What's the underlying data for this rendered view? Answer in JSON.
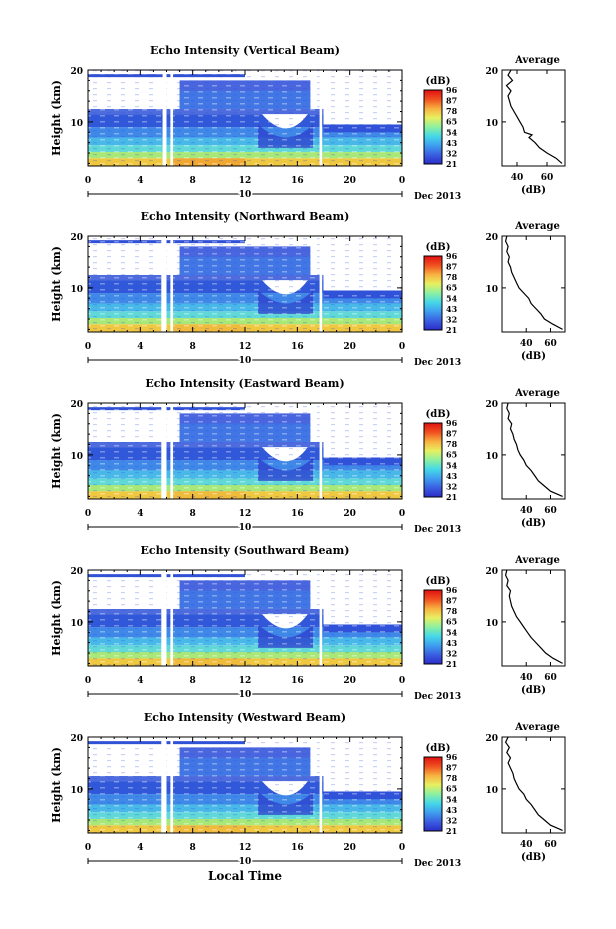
{
  "figure": {
    "date_label": "Dec 2013",
    "day_label": "10",
    "time_axis_label": "Local Time",
    "colorbar_unit": "(dB)",
    "colorbar_ticks": [
      "96",
      "87",
      "78",
      "65",
      "54",
      "43",
      "32",
      "21"
    ],
    "colorbar_colors": [
      "#2b2cc8",
      "#3a5fe0",
      "#3f9ef0",
      "#45d8e8",
      "#8ef0a0",
      "#e8f060",
      "#f8b040",
      "#f05020",
      "#e01010"
    ],
    "average_title": "Average",
    "average_xlabel": "(dB)"
  },
  "chart_data": [
    {
      "type": "heatmap",
      "title": "Echo Intensity (Vertical Beam)",
      "ylabel": "Height (km)",
      "x_ticks": [
        "0",
        "4",
        "8",
        "12",
        "16",
        "20",
        "0"
      ],
      "y_ticks": [
        "20",
        "10"
      ],
      "xlim": [
        0,
        24
      ],
      "ylim": [
        1.5,
        20
      ],
      "data_gaps_hours": [
        [
          5.7,
          6.0
        ],
        [
          6.3,
          6.5
        ],
        [
          17.7,
          17.9
        ]
      ],
      "profile": {
        "xlim": [
          30,
          72
        ],
        "x_ticks": [
          "40",
          "60"
        ],
        "y_ticks": [
          "20",
          "10"
        ],
        "points": [
          [
            70,
            2
          ],
          [
            66,
            3
          ],
          [
            60,
            4
          ],
          [
            55,
            5
          ],
          [
            52,
            6
          ],
          [
            48,
            7
          ],
          [
            50,
            7.5
          ],
          [
            45,
            8
          ],
          [
            44,
            9
          ],
          [
            42,
            10
          ],
          [
            40,
            11
          ],
          [
            38,
            12
          ],
          [
            36,
            13
          ],
          [
            35,
            14
          ],
          [
            34,
            15
          ],
          [
            36,
            16
          ],
          [
            33,
            17
          ],
          [
            37,
            18
          ],
          [
            34,
            19
          ],
          [
            36,
            20
          ]
        ]
      }
    },
    {
      "type": "heatmap",
      "title": "Echo Intensity (Northward Beam)",
      "ylabel": "Height (km)",
      "x_ticks": [
        "0",
        "4",
        "8",
        "12",
        "16",
        "20",
        "0"
      ],
      "y_ticks": [
        "20",
        "10"
      ],
      "xlim": [
        0,
        24
      ],
      "ylim": [
        1.5,
        20
      ],
      "data_gaps_hours": [
        [
          5.6,
          6.0
        ],
        [
          6.3,
          6.5
        ],
        [
          17.7,
          17.9
        ]
      ],
      "profile": {
        "xlim": [
          20,
          72
        ],
        "x_ticks": [
          "40",
          "60"
        ],
        "y_ticks": [
          "20",
          "10"
        ],
        "points": [
          [
            70,
            2
          ],
          [
            62,
            3
          ],
          [
            55,
            4
          ],
          [
            52,
            5
          ],
          [
            48,
            6
          ],
          [
            44,
            7
          ],
          [
            42,
            8
          ],
          [
            38,
            9
          ],
          [
            34,
            10
          ],
          [
            32,
            11
          ],
          [
            30,
            12
          ],
          [
            28,
            13
          ],
          [
            27,
            14
          ],
          [
            25,
            15
          ],
          [
            26,
            16
          ],
          [
            24,
            17
          ],
          [
            25,
            18
          ],
          [
            23,
            19
          ],
          [
            24,
            20
          ]
        ]
      }
    },
    {
      "type": "heatmap",
      "title": "Echo Intensity (Eastward Beam)",
      "ylabel": "Height (km)",
      "x_ticks": [
        "0",
        "4",
        "8",
        "12",
        "16",
        "20",
        "0"
      ],
      "y_ticks": [
        "20",
        "10"
      ],
      "xlim": [
        0,
        24
      ],
      "ylim": [
        1.5,
        20
      ],
      "data_gaps_hours": [
        [
          5.6,
          6.0
        ],
        [
          6.3,
          6.5
        ],
        [
          17.7,
          17.9
        ]
      ],
      "profile": {
        "xlim": [
          20,
          72
        ],
        "x_ticks": [
          "40",
          "60"
        ],
        "y_ticks": [
          "20",
          "10"
        ],
        "points": [
          [
            70,
            2
          ],
          [
            60,
            3
          ],
          [
            55,
            4
          ],
          [
            50,
            5
          ],
          [
            47,
            6
          ],
          [
            44,
            7
          ],
          [
            40,
            8
          ],
          [
            38,
            9
          ],
          [
            35,
            10
          ],
          [
            33,
            11
          ],
          [
            32,
            12
          ],
          [
            30,
            13
          ],
          [
            29,
            14
          ],
          [
            27,
            15
          ],
          [
            28,
            16
          ],
          [
            25,
            17
          ],
          [
            26,
            18
          ],
          [
            24,
            19
          ],
          [
            25,
            20
          ]
        ]
      }
    },
    {
      "type": "heatmap",
      "title": "Echo Intensity (Southward Beam)",
      "ylabel": "Height (km)",
      "x_ticks": [
        "0",
        "4",
        "8",
        "12",
        "16",
        "20",
        "0"
      ],
      "y_ticks": [
        "20",
        "10"
      ],
      "xlim": [
        0,
        24
      ],
      "ylim": [
        1.5,
        20
      ],
      "data_gaps_hours": [
        [
          5.6,
          6.0
        ],
        [
          6.3,
          6.5
        ],
        [
          17.7,
          17.9
        ]
      ],
      "profile": {
        "xlim": [
          20,
          72
        ],
        "x_ticks": [
          "40",
          "60"
        ],
        "y_ticks": [
          "20",
          "10"
        ],
        "points": [
          [
            70,
            2
          ],
          [
            62,
            3
          ],
          [
            56,
            4
          ],
          [
            52,
            5
          ],
          [
            48,
            6
          ],
          [
            44,
            7
          ],
          [
            41,
            8
          ],
          [
            38,
            9
          ],
          [
            35,
            10
          ],
          [
            32,
            11
          ],
          [
            30,
            12
          ],
          [
            28,
            13
          ],
          [
            27,
            14
          ],
          [
            26,
            15
          ],
          [
            27,
            16
          ],
          [
            24,
            17
          ],
          [
            25,
            18
          ],
          [
            23,
            19
          ],
          [
            24,
            20
          ]
        ]
      }
    },
    {
      "type": "heatmap",
      "title": "Echo Intensity (Westward Beam)",
      "ylabel": "Height (km)",
      "x_ticks": [
        "0",
        "4",
        "8",
        "12",
        "16",
        "20",
        "0"
      ],
      "y_ticks": [
        "20",
        "10"
      ],
      "xlim": [
        0,
        24
      ],
      "ylim": [
        1.5,
        20
      ],
      "data_gaps_hours": [
        [
          5.6,
          6.0
        ],
        [
          6.3,
          6.5
        ],
        [
          17.7,
          17.9
        ]
      ],
      "profile": {
        "xlim": [
          20,
          72
        ],
        "x_ticks": [
          "40",
          "60"
        ],
        "y_ticks": [
          "20",
          "10"
        ],
        "points": [
          [
            70,
            2
          ],
          [
            60,
            3
          ],
          [
            55,
            4
          ],
          [
            50,
            5
          ],
          [
            47,
            6
          ],
          [
            44,
            7
          ],
          [
            40,
            8
          ],
          [
            38,
            9
          ],
          [
            34,
            10
          ],
          [
            32,
            11
          ],
          [
            30,
            12
          ],
          [
            29,
            13
          ],
          [
            27,
            14
          ],
          [
            25,
            15
          ],
          [
            27,
            16
          ],
          [
            24,
            17
          ],
          [
            26,
            18
          ],
          [
            23,
            19
          ],
          [
            25,
            20
          ]
        ]
      }
    }
  ]
}
